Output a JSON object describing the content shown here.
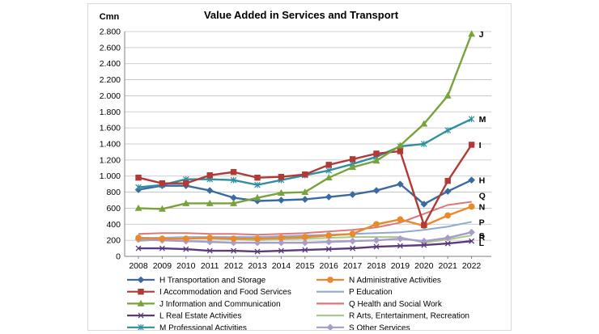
{
  "chart_data": {
    "type": "line",
    "title": "Value Added in Services and Transport",
    "ylabel": "Cmn",
    "xlabel": "",
    "ylim": [
      0,
      2800
    ],
    "yticks": [
      0,
      200,
      400,
      600,
      800,
      1000,
      1200,
      1400,
      1600,
      1800,
      2000,
      2200,
      2400,
      2600,
      2800
    ],
    "ytick_labels": [
      "0",
      "200",
      "400",
      "600",
      "800",
      "1.000",
      "1.200",
      "1.400",
      "1.600",
      "1.800",
      "2.000",
      "2.200",
      "2.400",
      "2.600",
      "2.800"
    ],
    "x": [
      "2008",
      "2009",
      "2010",
      "2011",
      "2012",
      "2013",
      "2014",
      "2015",
      "2016",
      "2017",
      "2018",
      "2019",
      "2020",
      "2021",
      "2022"
    ],
    "grid": true,
    "legend_position": "bottom",
    "series": [
      {
        "name": "H Transportation and Storage",
        "end_label": "H",
        "color": "#3a6aa0",
        "marker": "diamond",
        "values": [
          830,
          880,
          880,
          820,
          730,
          690,
          700,
          710,
          740,
          770,
          820,
          900,
          650,
          810,
          950
        ]
      },
      {
        "name": "N Administrative Activities",
        "end_label": "N",
        "color": "#e8892e",
        "marker": "circle",
        "values": [
          230,
          220,
          220,
          230,
          220,
          220,
          230,
          240,
          260,
          280,
          400,
          460,
          380,
          510,
          620
        ]
      },
      {
        "name": "I Accommodation and Food Services",
        "end_label": "I",
        "color": "#b23a36",
        "marker": "square",
        "values": [
          980,
          910,
          910,
          1010,
          1050,
          980,
          990,
          1020,
          1140,
          1210,
          1280,
          1310,
          390,
          940,
          1390
        ]
      },
      {
        "name": "P Education",
        "end_label": "P",
        "color": "#8fa8d6",
        "marker": "none",
        "values": [
          230,
          230,
          240,
          240,
          240,
          240,
          250,
          260,
          270,
          280,
          290,
          300,
          330,
          370,
          430
        ]
      },
      {
        "name": "J Information and Communication",
        "end_label": "J",
        "color": "#79a23b",
        "marker": "triangle",
        "values": [
          600,
          590,
          660,
          660,
          660,
          730,
          790,
          800,
          980,
          1110,
          1190,
          1380,
          1650,
          2000,
          2770
        ]
      },
      {
        "name": "Q Health and Social Work",
        "end_label": "Q",
        "color": "#d97a78",
        "marker": "none",
        "values": [
          280,
          290,
          290,
          280,
          280,
          270,
          280,
          290,
          310,
          330,
          360,
          420,
          530,
          640,
          680
        ]
      },
      {
        "name": "L Real Estate Activities",
        "end_label": "L",
        "color": "#5a3a7a",
        "marker": "x",
        "values": [
          100,
          100,
          90,
          70,
          70,
          60,
          70,
          80,
          90,
          100,
          120,
          130,
          140,
          160,
          190
        ]
      },
      {
        "name": "R Arts, Entertainment, Recreation",
        "end_label": "R",
        "color": "#a8c98a",
        "marker": "none",
        "values": [
          190,
          210,
          230,
          220,
          210,
          200,
          210,
          220,
          230,
          240,
          240,
          240,
          170,
          210,
          260
        ]
      },
      {
        "name": "M Professional Activities",
        "end_label": "M",
        "color": "#2f8fa0",
        "marker": "star",
        "values": [
          860,
          890,
          960,
          960,
          950,
          890,
          950,
          1010,
          1070,
          1150,
          1240,
          1370,
          1400,
          1570,
          1710
        ]
      },
      {
        "name": "S Other Services",
        "end_label": "S",
        "color": "#a89cc8",
        "marker": "diamond",
        "values": [
          210,
          200,
          190,
          180,
          170,
          170,
          170,
          170,
          180,
          190,
          200,
          220,
          190,
          230,
          300
        ]
      }
    ]
  }
}
